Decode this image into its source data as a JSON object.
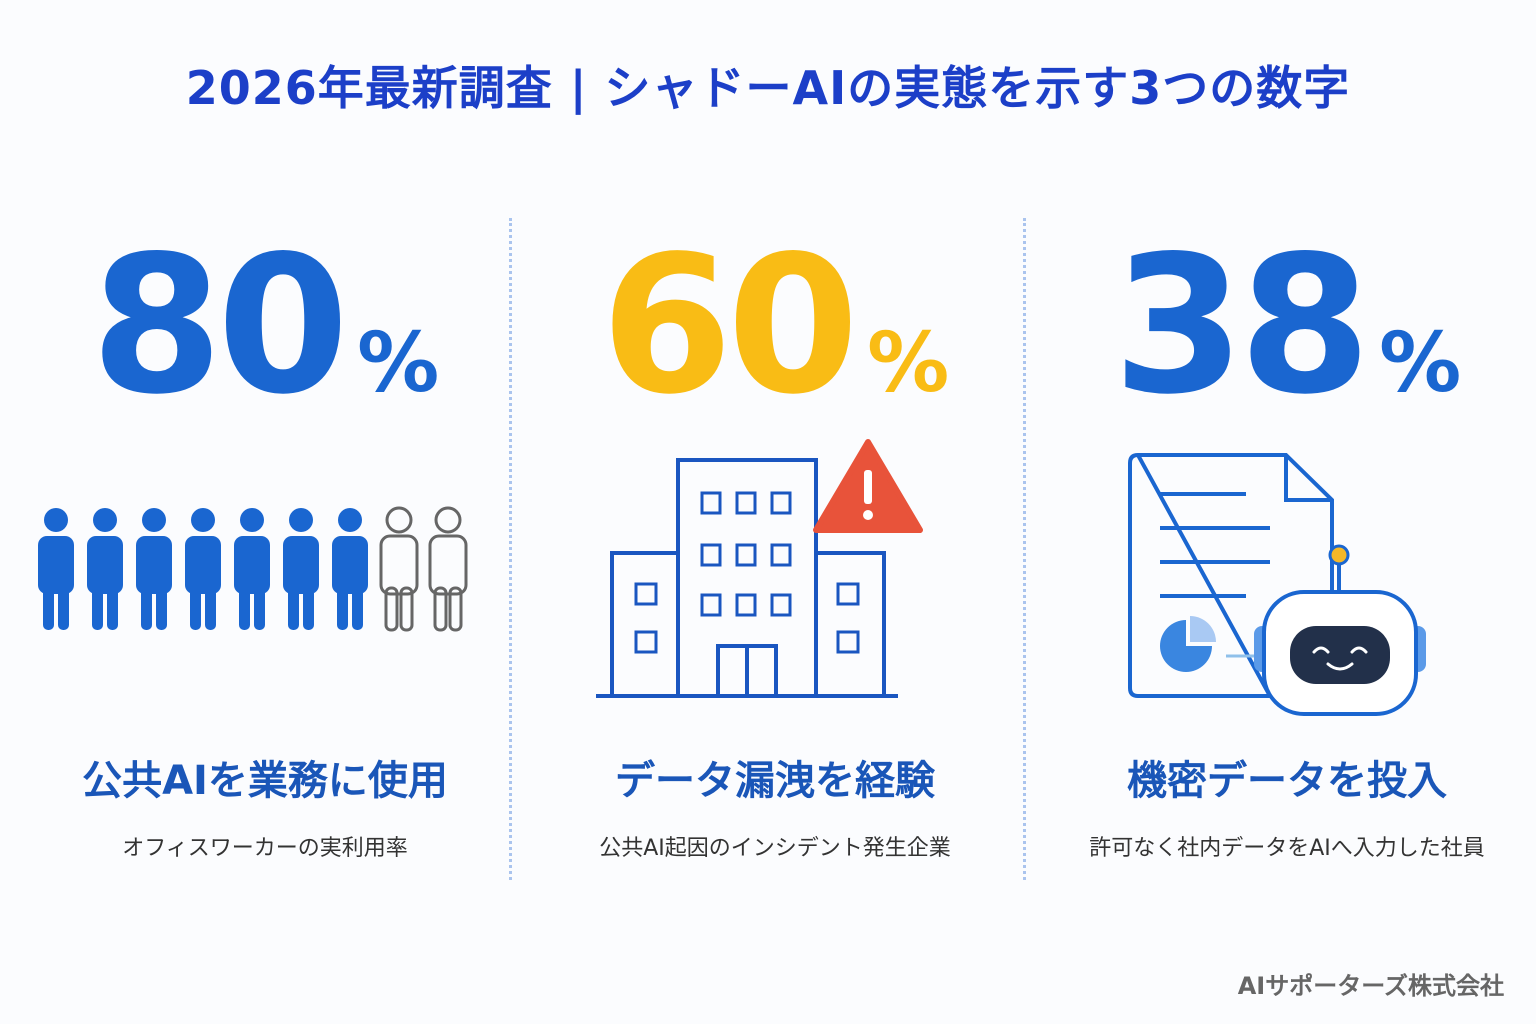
{
  "header": {
    "title": "2026年最新調査 | シャドーAIの実態を示す3つの数字"
  },
  "stats": [
    {
      "value": 80,
      "unit": "%",
      "color": "#1a66d0",
      "headline": "公共AIを業務に使用",
      "caption": "オフィスワーカーの実利用率"
    },
    {
      "value": 60,
      "unit": "%",
      "color": "#f9bc15",
      "headline": "データ漏洩を経験",
      "caption": "公共AI起因のインシデント発生企業"
    },
    {
      "value": 38,
      "unit": "%",
      "color": "#1a66d0",
      "headline": "機密データを投入",
      "caption": "許可なく社内データをAIへ入力した社員"
    }
  ],
  "footer": {
    "company": "AIサポーターズ株式会社"
  }
}
